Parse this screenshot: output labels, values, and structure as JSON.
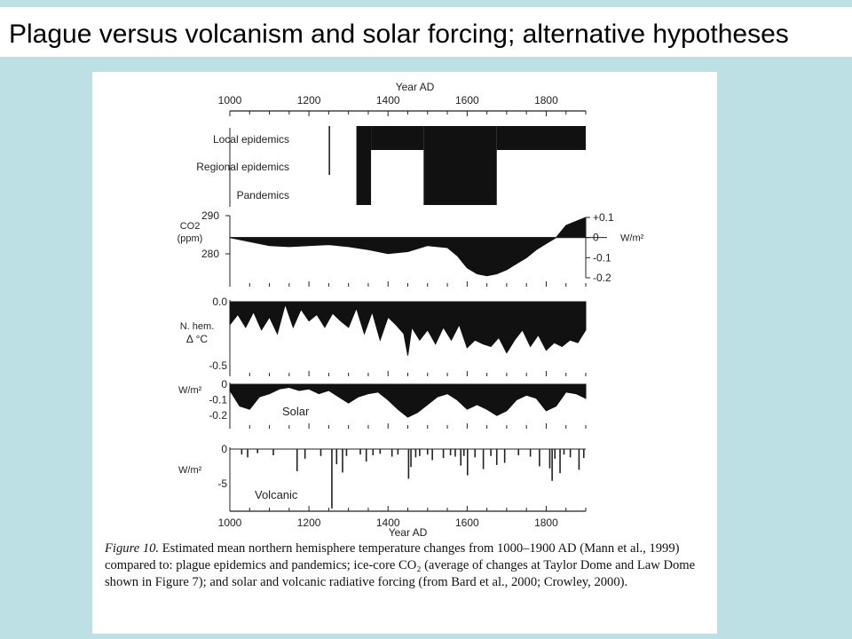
{
  "slide": {
    "title": "Plague versus volcanism and solar forcing; alternative hypotheses",
    "bg_color": "#bde0e4"
  },
  "caption": {
    "label": "Figure 10.",
    "text": "Estimated mean northern hemisphere temperature changes from 1000–1900 AD (Mann et al., 1999) compared to: plague epidemics and pandemics; ice-core CO₂ (average of changes at Taylor Dome and Law Dome shown in Figure 7); and solar and volcanic radiative forcing (from Bard et al., 2000; Crowley, 2000)."
  },
  "chart_data": {
    "type": "area",
    "xlim": [
      1000,
      1900
    ],
    "x_ticks": [
      "1000",
      "1200",
      "1400",
      "1600",
      "1800"
    ],
    "top_axis_label": "Year AD",
    "bottom_axis_label": "Year AD",
    "panels": [
      {
        "id": "plague",
        "type": "step",
        "levels": [
          "Local epidemics",
          "Regional epidemics",
          "Pandemics"
        ],
        "segments": [
          {
            "x": [
              1250,
              1252
            ],
            "level_range": [
              "Local epidemics",
              "Regional epidemics"
            ]
          },
          {
            "x": [
              1320,
              1357
            ],
            "level_range": [
              "Local epidemics",
              "Pandemics"
            ]
          },
          {
            "x": [
              1357,
              1490
            ],
            "level_range": [
              "Local epidemics",
              "Local epidemics"
            ]
          },
          {
            "x": [
              1490,
              1675
            ],
            "level_range": [
              "Local epidemics",
              "Pandemics"
            ]
          },
          {
            "x": [
              1675,
              1900
            ],
            "level_range": [
              "Local epidemics",
              "Local epidemics"
            ]
          }
        ]
      },
      {
        "id": "co2",
        "ylabel_left": [
          "CO2",
          "(ppm)"
        ],
        "ylabel_right": "W/m²",
        "left_ticks": [
          "290",
          "280"
        ],
        "right_ticks": [
          "+0.1",
          "0",
          "-0.1",
          "-0.2"
        ],
        "ylim": [
          -0.2,
          0.1
        ],
        "x": [
          1000,
          1050,
          1100,
          1150,
          1200,
          1250,
          1300,
          1350,
          1400,
          1450,
          1500,
          1550,
          1575,
          1600,
          1625,
          1650,
          1675,
          1700,
          1725,
          1750,
          1775,
          1800,
          1825,
          1850,
          1875,
          1900
        ],
        "y": [
          0.0,
          -0.02,
          -0.04,
          -0.045,
          -0.04,
          -0.035,
          -0.045,
          -0.06,
          -0.08,
          -0.07,
          -0.04,
          -0.05,
          -0.09,
          -0.15,
          -0.18,
          -0.19,
          -0.18,
          -0.16,
          -0.13,
          -0.1,
          -0.06,
          -0.03,
          0.0,
          0.06,
          0.08,
          0.1
        ]
      },
      {
        "id": "temperature",
        "ylabel_left": [
          "N. hem.",
          "Δ °C"
        ],
        "left_ticks": [
          "0.0",
          "-0.5"
        ],
        "ylim": [
          -0.5,
          0.0
        ],
        "x": [
          1000,
          1020,
          1040,
          1060,
          1080,
          1100,
          1120,
          1140,
          1160,
          1180,
          1200,
          1220,
          1240,
          1260,
          1280,
          1300,
          1320,
          1340,
          1360,
          1380,
          1400,
          1420,
          1440,
          1450,
          1460,
          1480,
          1500,
          1520,
          1540,
          1560,
          1580,
          1600,
          1620,
          1640,
          1660,
          1680,
          1700,
          1720,
          1740,
          1760,
          1780,
          1800,
          1820,
          1840,
          1860,
          1880,
          1900
        ],
        "y": [
          -0.18,
          -0.1,
          -0.2,
          -0.08,
          -0.22,
          -0.12,
          -0.25,
          -0.02,
          -0.2,
          -0.06,
          -0.15,
          -0.1,
          -0.2,
          -0.09,
          -0.15,
          -0.2,
          -0.05,
          -0.25,
          -0.08,
          -0.3,
          -0.12,
          -0.18,
          -0.25,
          -0.42,
          -0.2,
          -0.3,
          -0.22,
          -0.33,
          -0.2,
          -0.3,
          -0.18,
          -0.36,
          -0.3,
          -0.33,
          -0.35,
          -0.28,
          -0.4,
          -0.3,
          -0.22,
          -0.35,
          -0.26,
          -0.38,
          -0.32,
          -0.35,
          -0.3,
          -0.32,
          -0.22
        ]
      },
      {
        "id": "solar",
        "series_label": "Solar",
        "ylabel_left": "W/m²",
        "left_ticks": [
          "0",
          "-0.1",
          "-0.2"
        ],
        "ylim": [
          -0.25,
          0.0
        ],
        "x": [
          1000,
          1025,
          1050,
          1075,
          1100,
          1125,
          1150,
          1175,
          1200,
          1225,
          1250,
          1275,
          1300,
          1325,
          1350,
          1375,
          1400,
          1425,
          1450,
          1475,
          1500,
          1525,
          1550,
          1575,
          1600,
          1625,
          1650,
          1675,
          1700,
          1725,
          1750,
          1775,
          1800,
          1825,
          1850,
          1875,
          1900
        ],
        "y": [
          -0.04,
          -0.14,
          -0.16,
          -0.08,
          -0.06,
          -0.03,
          -0.02,
          -0.04,
          -0.03,
          -0.06,
          -0.04,
          -0.08,
          -0.12,
          -0.08,
          -0.06,
          -0.05,
          -0.1,
          -0.16,
          -0.21,
          -0.18,
          -0.13,
          -0.08,
          -0.06,
          -0.1,
          -0.16,
          -0.13,
          -0.16,
          -0.2,
          -0.17,
          -0.1,
          -0.07,
          -0.09,
          -0.17,
          -0.14,
          -0.05,
          -0.06,
          -0.09
        ]
      },
      {
        "id": "volcanic",
        "series_label": "Volcanic",
        "ylabel_left": "W/m²",
        "left_ticks": [
          "0",
          "-5"
        ],
        "ylim": [
          -9,
          0
        ],
        "events": [
          {
            "x": 1030,
            "y": -0.8
          },
          {
            "x": 1045,
            "y": -1.2
          },
          {
            "x": 1070,
            "y": -0.6
          },
          {
            "x": 1110,
            "y": -0.9
          },
          {
            "x": 1170,
            "y": -3.2
          },
          {
            "x": 1190,
            "y": -1.4
          },
          {
            "x": 1230,
            "y": -1.0
          },
          {
            "x": 1258,
            "y": -8.6
          },
          {
            "x": 1270,
            "y": -2.2
          },
          {
            "x": 1285,
            "y": -3.4
          },
          {
            "x": 1295,
            "y": -1.0
          },
          {
            "x": 1330,
            "y": -0.8
          },
          {
            "x": 1345,
            "y": -1.8
          },
          {
            "x": 1362,
            "y": -0.9
          },
          {
            "x": 1380,
            "y": -0.7
          },
          {
            "x": 1410,
            "y": -1.1
          },
          {
            "x": 1425,
            "y": -0.8
          },
          {
            "x": 1452,
            "y": -4.3
          },
          {
            "x": 1458,
            "y": -2.6
          },
          {
            "x": 1470,
            "y": -1.2
          },
          {
            "x": 1480,
            "y": -1.0
          },
          {
            "x": 1500,
            "y": -0.8
          },
          {
            "x": 1512,
            "y": -1.6
          },
          {
            "x": 1540,
            "y": -1.3
          },
          {
            "x": 1558,
            "y": -0.9
          },
          {
            "x": 1570,
            "y": -1.1
          },
          {
            "x": 1584,
            "y": -2.4
          },
          {
            "x": 1592,
            "y": -1.0
          },
          {
            "x": 1601,
            "y": -3.8
          },
          {
            "x": 1620,
            "y": -1.2
          },
          {
            "x": 1641,
            "y": -2.9
          },
          {
            "x": 1660,
            "y": -1.0
          },
          {
            "x": 1675,
            "y": -2.3
          },
          {
            "x": 1695,
            "y": -2.0
          },
          {
            "x": 1730,
            "y": -0.9
          },
          {
            "x": 1760,
            "y": -1.1
          },
          {
            "x": 1783,
            "y": -2.5
          },
          {
            "x": 1809,
            "y": -2.8
          },
          {
            "x": 1815,
            "y": -4.6
          },
          {
            "x": 1822,
            "y": -1.4
          },
          {
            "x": 1835,
            "y": -3.5
          },
          {
            "x": 1845,
            "y": -0.8
          },
          {
            "x": 1861,
            "y": -1.2
          },
          {
            "x": 1883,
            "y": -3.0
          },
          {
            "x": 1895,
            "y": -1.3
          }
        ]
      }
    ]
  }
}
